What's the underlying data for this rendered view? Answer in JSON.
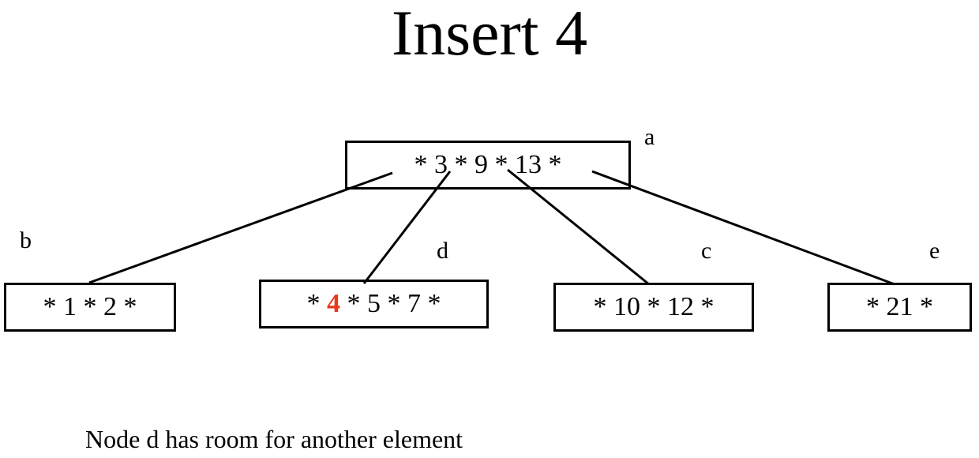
{
  "title": "Insert 4",
  "nodes": {
    "a": {
      "label": "a",
      "text": "* 3 * 9 * 13 *"
    },
    "b": {
      "label": "b",
      "text": "* 1 * 2 *"
    },
    "d": {
      "label": "d",
      "before": "* ",
      "inserted": "4",
      "after": " * 5 * 7 *"
    },
    "c": {
      "label": "c",
      "text": "* 10 * 12 *"
    },
    "e": {
      "label": "e",
      "text": "* 21 *"
    }
  },
  "caption": "Node d has room for another element",
  "colors": {
    "inserted_key": "#e8391c",
    "line": "#000000"
  }
}
